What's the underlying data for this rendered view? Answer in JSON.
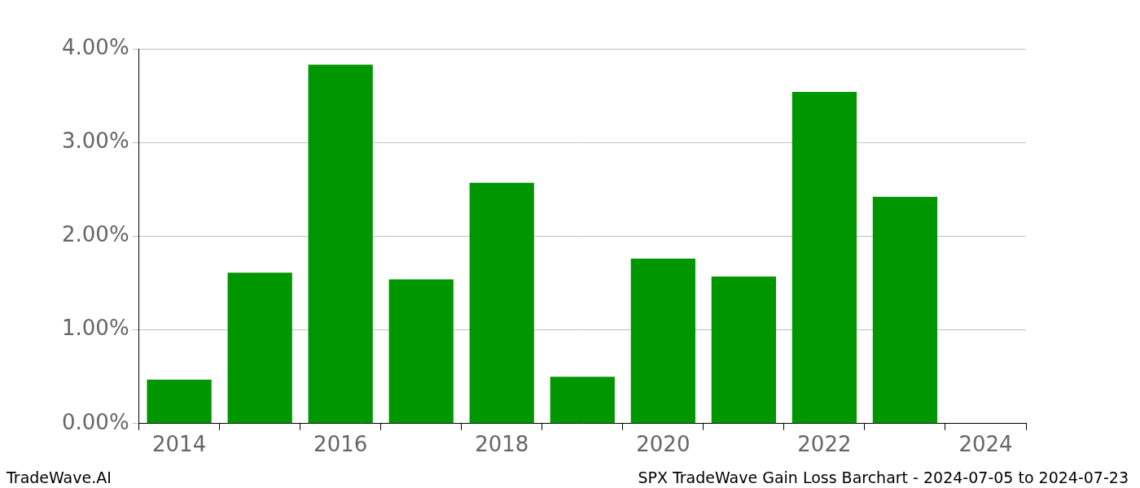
{
  "chart_data": {
    "type": "bar",
    "categories": [
      "2014",
      null,
      "2016",
      null,
      "2018",
      null,
      "2020",
      null,
      "2022",
      null,
      "2024"
    ],
    "values": [
      0.47,
      1.61,
      3.83,
      1.54,
      2.57,
      0.5,
      1.76,
      1.57,
      3.54,
      2.42,
      null
    ],
    "color": "#009600",
    "ylim": [
      0,
      4
    ],
    "yticks": [
      {
        "value": 0,
        "label": "0.00%"
      },
      {
        "value": 1,
        "label": "1.00%"
      },
      {
        "value": 2,
        "label": "2.00%"
      },
      {
        "value": 3,
        "label": "3.00%"
      },
      {
        "value": 4,
        "label": "4.00%"
      }
    ],
    "grid": true,
    "annotations": [
      "TradeWave.AI",
      "SPX TradeWave Gain Loss Barchart - 2024-07-05 to 2024-07-23"
    ]
  }
}
